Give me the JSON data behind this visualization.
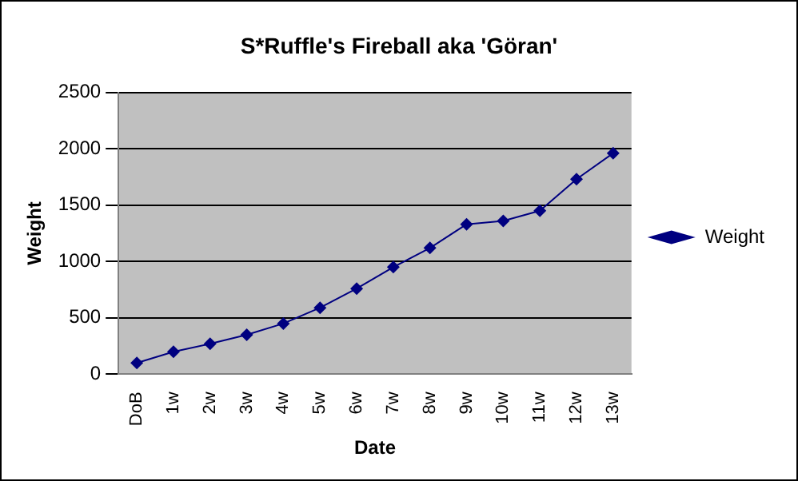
{
  "chart_data": {
    "type": "line",
    "title": "S*Ruffle's Fireball aka 'Göran'",
    "xlabel": "Date",
    "ylabel": "Weight",
    "categories": [
      "DoB",
      "1w",
      "2w",
      "3w",
      "4w",
      "5w",
      "6w",
      "7w",
      "8w",
      "9w",
      "10w",
      "11w",
      "12w",
      "13w"
    ],
    "series": [
      {
        "name": "Weight",
        "color": "#000080",
        "values": [
          100,
          200,
          270,
          350,
          450,
          590,
          760,
          950,
          1120,
          1330,
          1360,
          1450,
          1730,
          1960
        ]
      }
    ],
    "ylim": [
      0,
      2500
    ],
    "yticks": [
      0,
      500,
      1000,
      1500,
      2000,
      2500
    ],
    "grid": "y",
    "legend": "right",
    "marker": "diamond",
    "line_style": "solid"
  }
}
